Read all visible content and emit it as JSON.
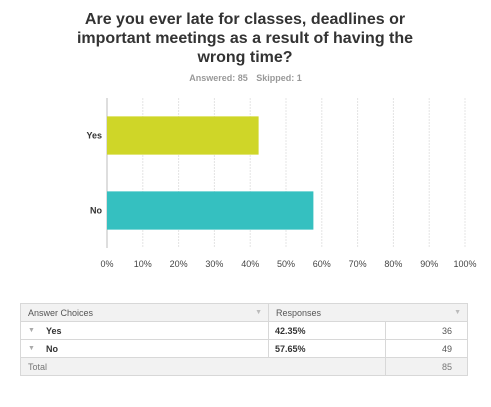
{
  "question": {
    "title": "Are you ever late for classes, deadlines or important meetings as a result of having the wrong time?",
    "answered": "Answered: 85",
    "skipped": "Skipped: 1"
  },
  "chart_data": {
    "type": "bar",
    "orientation": "horizontal",
    "categories": [
      "Yes",
      "No"
    ],
    "values": [
      42.35,
      57.65
    ],
    "colors": [
      "#cfd628",
      "#35c0c0"
    ],
    "xlim": [
      0,
      100
    ],
    "xticks": [
      "0%",
      "10%",
      "20%",
      "30%",
      "40%",
      "50%",
      "60%",
      "70%",
      "80%",
      "90%",
      "100%"
    ],
    "grid": true
  },
  "table": {
    "headers": [
      "Answer Choices",
      "Responses"
    ],
    "rows": [
      {
        "choice": "Yes",
        "percent": "42.35%",
        "count": "36"
      },
      {
        "choice": "No",
        "percent": "57.65%",
        "count": "49"
      }
    ],
    "total_label": "Total",
    "total_count": "85"
  }
}
